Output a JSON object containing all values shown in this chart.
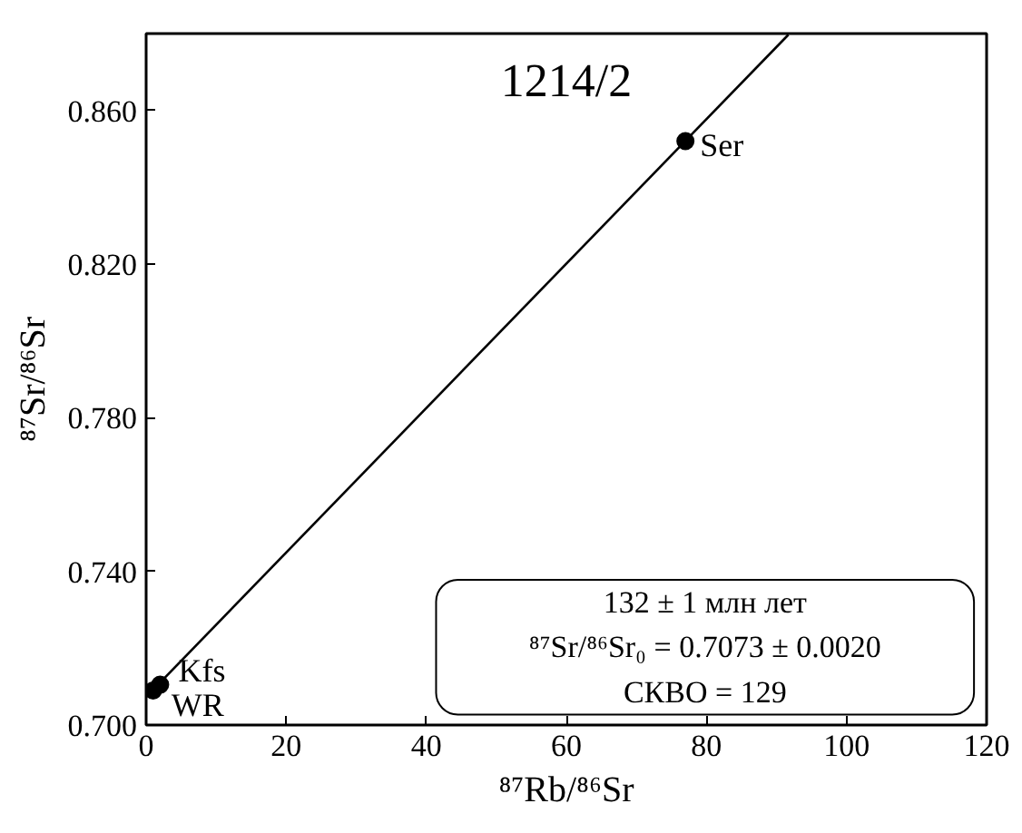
{
  "chart_data": {
    "type": "scatter",
    "title": "1214/2",
    "xlabel": "⁸⁷Rb/⁸⁶Sr",
    "ylabel": "⁸⁷Sr/⁸⁶Sr",
    "xlim": [
      0,
      120
    ],
    "xticks": [
      0,
      20,
      40,
      60,
      80,
      100,
      120
    ],
    "ylim": [
      0.7,
      0.88
    ],
    "yticks": [
      {
        "value": 0.7,
        "label": "0.700"
      },
      {
        "value": 0.74,
        "label": "0.740"
      },
      {
        "value": 0.78,
        "label": "0.780"
      },
      {
        "value": 0.82,
        "label": "0.820"
      },
      {
        "value": 0.86,
        "label": "0.860"
      }
    ],
    "grid": false,
    "series": [
      {
        "color": "#000000",
        "marker": "circle",
        "x": [
          1,
          2,
          77
        ],
        "values": [
          0.709,
          0.7105,
          0.852
        ]
      },
      {
        "type": "line",
        "color": "#000000",
        "marker": "none",
        "x": [
          0,
          91.7
        ],
        "values": [
          0.7073,
          0.8797
        ]
      }
    ],
    "annotations": [
      {
        "text": "Ser",
        "x": 77,
        "y": 0.852
      },
      {
        "text": "Kfs",
        "x": 2,
        "y": 0.7105
      },
      {
        "text": "WR",
        "x": 1,
        "y": 0.709
      },
      "132 ± 1 млн лет",
      "⁸⁷Sr/⁸⁶Sr₀ = 0.7073 ± 0.0020",
      "СКВО = 129"
    ]
  }
}
